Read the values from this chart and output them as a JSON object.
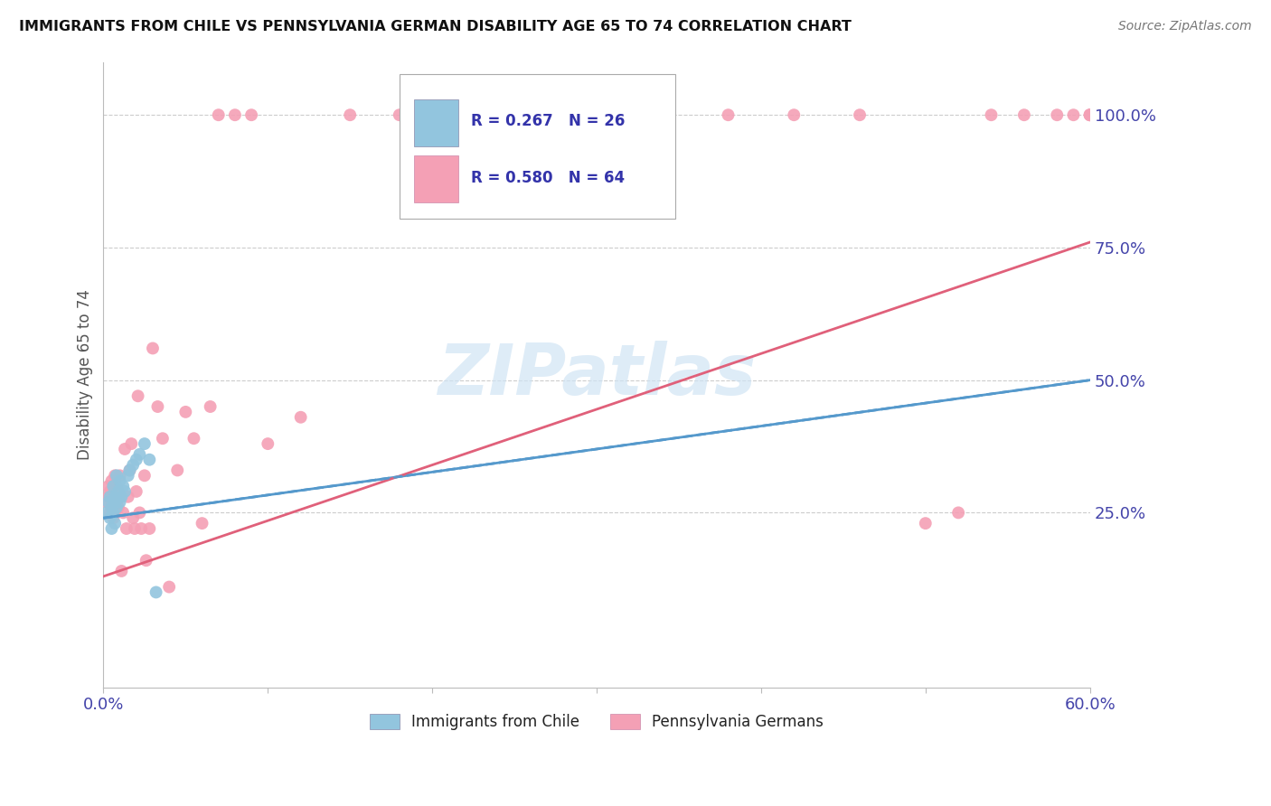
{
  "title": "IMMIGRANTS FROM CHILE VS PENNSYLVANIA GERMAN DISABILITY AGE 65 TO 74 CORRELATION CHART",
  "source": "Source: ZipAtlas.com",
  "ylabel": "Disability Age 65 to 74",
  "xlim": [
    0.0,
    0.6
  ],
  "ylim": [
    -0.08,
    1.1
  ],
  "yticks_right": [
    0.25,
    0.5,
    0.75,
    1.0
  ],
  "yticks_right_labels": [
    "25.0%",
    "50.0%",
    "75.0%",
    "100.0%"
  ],
  "legend_r1": "R = 0.267",
  "legend_n1": "N = 26",
  "legend_r2": "R = 0.580",
  "legend_n2": "N = 64",
  "legend_label1": "Immigrants from Chile",
  "legend_label2": "Pennsylvania Germans",
  "color_blue": "#92c5de",
  "color_pink": "#f4a0b5",
  "color_blue_line": "#5599cc",
  "color_pink_line": "#e0607a",
  "watermark_color": "#d0e4f4",
  "blue_scatter_x": [
    0.002,
    0.003,
    0.004,
    0.004,
    0.005,
    0.005,
    0.006,
    0.006,
    0.007,
    0.007,
    0.008,
    0.008,
    0.009,
    0.01,
    0.01,
    0.011,
    0.012,
    0.013,
    0.015,
    0.016,
    0.018,
    0.02,
    0.022,
    0.025,
    0.028,
    0.032
  ],
  "blue_scatter_y": [
    0.25,
    0.27,
    0.24,
    0.28,
    0.26,
    0.22,
    0.3,
    0.25,
    0.28,
    0.23,
    0.32,
    0.26,
    0.29,
    0.27,
    0.31,
    0.28,
    0.3,
    0.29,
    0.32,
    0.33,
    0.34,
    0.35,
    0.36,
    0.38,
    0.35,
    0.1
  ],
  "pink_scatter_x": [
    0.002,
    0.003,
    0.003,
    0.004,
    0.004,
    0.005,
    0.005,
    0.006,
    0.006,
    0.007,
    0.007,
    0.008,
    0.008,
    0.009,
    0.009,
    0.01,
    0.01,
    0.011,
    0.012,
    0.013,
    0.014,
    0.015,
    0.016,
    0.017,
    0.018,
    0.019,
    0.02,
    0.021,
    0.022,
    0.023,
    0.025,
    0.026,
    0.028,
    0.03,
    0.033,
    0.036,
    0.04,
    0.045,
    0.05,
    0.055,
    0.06,
    0.065,
    0.07,
    0.08,
    0.09,
    0.1,
    0.12,
    0.15,
    0.18,
    0.22,
    0.27,
    0.32,
    0.38,
    0.42,
    0.46,
    0.5,
    0.52,
    0.54,
    0.56,
    0.58,
    0.59,
    0.6,
    0.6,
    0.6
  ],
  "pink_scatter_y": [
    0.27,
    0.28,
    0.3,
    0.25,
    0.29,
    0.26,
    0.31,
    0.24,
    0.28,
    0.25,
    0.32,
    0.27,
    0.3,
    0.26,
    0.29,
    0.28,
    0.32,
    0.14,
    0.25,
    0.37,
    0.22,
    0.28,
    0.33,
    0.38,
    0.24,
    0.22,
    0.29,
    0.47,
    0.25,
    0.22,
    0.32,
    0.16,
    0.22,
    0.56,
    0.45,
    0.39,
    0.11,
    0.33,
    0.44,
    0.39,
    0.23,
    0.45,
    1.0,
    1.0,
    1.0,
    0.38,
    0.43,
    1.0,
    1.0,
    1.0,
    1.0,
    1.0,
    1.0,
    1.0,
    1.0,
    0.23,
    0.25,
    1.0,
    1.0,
    1.0,
    1.0,
    1.0,
    1.0,
    1.0
  ],
  "blue_line_x0": 0.0,
  "blue_line_x1": 0.6,
  "blue_line_y0": 0.24,
  "blue_line_y1": 0.5,
  "pink_line_x0": 0.0,
  "pink_line_x1": 0.6,
  "pink_line_y0": 0.13,
  "pink_line_y1": 0.76
}
